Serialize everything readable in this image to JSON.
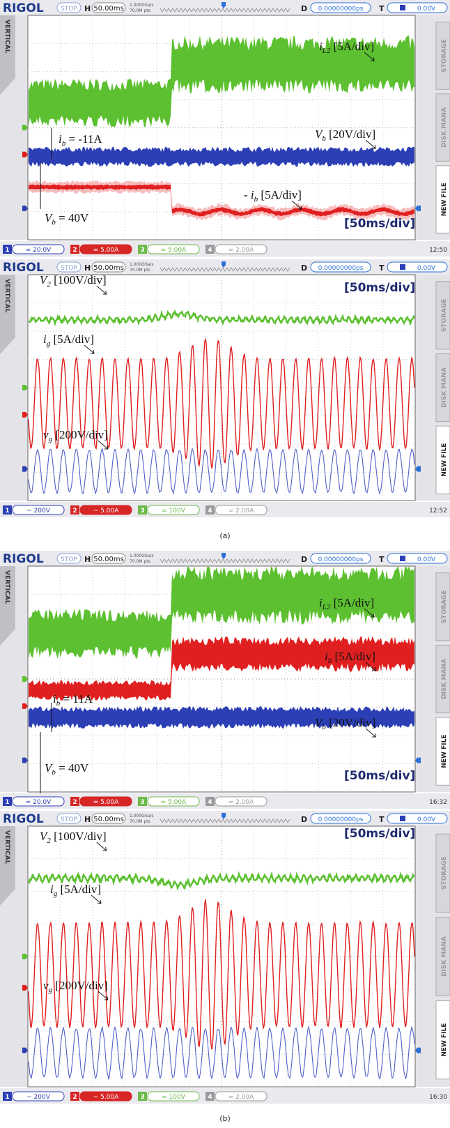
{
  "panels": [
    {
      "header": {
        "brand": "RIGOL",
        "state": "STOP",
        "h_label": "H",
        "timebase": "50.00ms",
        "sample_rate": "1.000GSa/s",
        "points": "70.0M pts",
        "d_label": "D",
        "delay": "0.00000000ps",
        "t_label": "T",
        "trigger_level": "0.00V"
      },
      "sidebar": {
        "left": "VERTICAL",
        "right": [
          "STORAGE",
          "DISK MANA",
          "NEW FILE"
        ]
      },
      "annotations": [
        {
          "var": "i",
          "sub": "L2",
          "rest": " [5A/div]"
        },
        {
          "var": "i",
          "sub": "b",
          "rest": " = -11A"
        },
        {
          "var": "V",
          "sub": "b",
          "rest": " [20V/div]"
        },
        {
          "prefix": "- ",
          "var": "i",
          "sub": "b",
          "rest": " [5A/div]"
        },
        {
          "var": "V",
          "sub": "b",
          "rest": " = 40V"
        },
        {
          "text": "[50ms/div]"
        }
      ],
      "footer": {
        "channels": [
          {
            "num": "1",
            "setting": "= 20.0V"
          },
          {
            "num": "2",
            "setting": "= 5.00A"
          },
          {
            "num": "3",
            "setting": "= 5.00A"
          },
          {
            "num": "4",
            "setting": "= 2.00A"
          }
        ],
        "time": "12:50"
      }
    },
    {
      "header": {
        "brand": "RIGOL",
        "state": "STOP",
        "h_label": "H",
        "timebase": "50.00ms",
        "sample_rate": "1.000GSa/s",
        "points": "70.0M pts",
        "d_label": "D",
        "delay": "0.00000000ps",
        "t_label": "T",
        "trigger_level": "0.00V"
      },
      "sidebar": {
        "left": "VERTICAL",
        "right": [
          "STORAGE",
          "DISK MANA",
          "NEW FILE"
        ]
      },
      "annotations": [
        {
          "var": "V",
          "sub": "2",
          "rest": " [100V/div]"
        },
        {
          "var": "i",
          "sub": "g",
          "rest": " [5A/div]"
        },
        {
          "var": "v",
          "sub": "g",
          "rest": " [200V/div]"
        },
        {
          "text": "[50ms/div]"
        }
      ],
      "footer": {
        "channels": [
          {
            "num": "1",
            "setting": "~ 200V"
          },
          {
            "num": "2",
            "setting": "~ 5.00A"
          },
          {
            "num": "3",
            "setting": "= 100V"
          },
          {
            "num": "4",
            "setting": "= 2.00A"
          }
        ],
        "time": "12:52"
      }
    },
    {
      "header": {
        "brand": "RIGOL",
        "state": "STOP",
        "h_label": "H",
        "timebase": "50.00ms",
        "sample_rate": "1.000GSa/s",
        "points": "70.0M pts",
        "d_label": "D",
        "delay": "0.00000000ps",
        "t_label": "T",
        "trigger_level": "0.00V"
      },
      "sidebar": {
        "left": "VERTICAL",
        "right": [
          "STORAGE",
          "DISK MANA",
          "NEW FILE"
        ]
      },
      "annotations": [
        {
          "var": "i",
          "sub": "L2",
          "rest": " [5A/div]"
        },
        {
          "var": "i",
          "sub": "b",
          "rest": " [5A/div]"
        },
        {
          "var": "i",
          "sub": "b",
          "rest": " = 11A"
        },
        {
          "var": "V",
          "sub": "b",
          "rest": " [20V/div]"
        },
        {
          "var": "V",
          "sub": "b",
          "rest": " = 40V"
        },
        {
          "text": "[50ms/div]"
        }
      ],
      "footer": {
        "channels": [
          {
            "num": "1",
            "setting": "= 20.0V"
          },
          {
            "num": "2",
            "setting": "= 5.00A"
          },
          {
            "num": "3",
            "setting": "= 5.00A"
          },
          {
            "num": "4",
            "setting": "= 2.00A"
          }
        ],
        "time": "16:32"
      }
    },
    {
      "header": {
        "brand": "RIGOL",
        "state": "STOP",
        "h_label": "H",
        "timebase": "50.00ms",
        "sample_rate": "1.000GSa/s",
        "points": "70.0M pts",
        "d_label": "D",
        "delay": "0.00000000ps",
        "t_label": "T",
        "trigger_level": "0.00V"
      },
      "sidebar": {
        "left": "VERTICAL",
        "right": [
          "STORAGE",
          "DISK MANA",
          "NEW FILE"
        ]
      },
      "annotations": [
        {
          "var": "V",
          "sub": "2",
          "rest": " [100V/div]"
        },
        {
          "var": "i",
          "sub": "g",
          "rest": " [5A/div]"
        },
        {
          "var": "v",
          "sub": "g",
          "rest": " [200V/div]"
        },
        {
          "text": "[50ms/div]"
        }
      ],
      "footer": {
        "channels": [
          {
            "num": "1",
            "setting": "~ 200V"
          },
          {
            "num": "2",
            "setting": "~ 5.00A"
          },
          {
            "num": "3",
            "setting": "= 100V"
          },
          {
            "num": "4",
            "setting": "= 2.00A"
          }
        ],
        "time": "16:30"
      }
    }
  ],
  "captions": [
    "(a)",
    "(b)"
  ]
}
